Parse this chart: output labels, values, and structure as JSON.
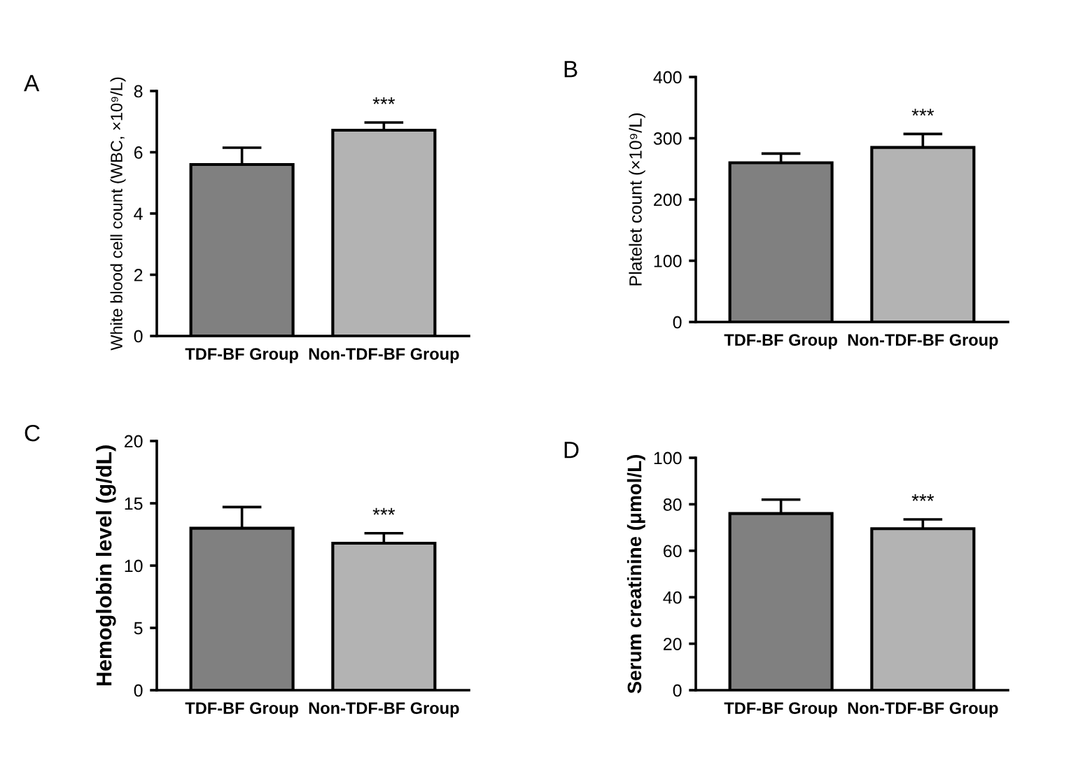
{
  "chart_data": [
    {
      "type": "bar",
      "title": "A",
      "ylabel": "White blood cell count (WBC, ×10⁹/L)",
      "categories": [
        "TDF-BF Group",
        "Non-TDF-BF Group"
      ],
      "values": [
        5.6,
        6.72
      ],
      "colors": [
        "#808080",
        "#b3b3b3"
      ],
      "errors": [
        0.55,
        0.25
      ],
      "ylim": [
        0,
        8
      ],
      "yticks": [
        0,
        2,
        4,
        6,
        8
      ],
      "grid": false,
      "annotations": [
        "***"
      ]
    },
    {
      "type": "bar",
      "title": "B",
      "ylabel": "Platelet count (×10⁹/L)",
      "categories": [
        "TDF-BF Group",
        "Non-TDF-BF Group"
      ],
      "values": [
        260,
        285
      ],
      "colors": [
        "#808080",
        "#b3b3b3"
      ],
      "errors": [
        15,
        22
      ],
      "ylim": [
        0,
        400
      ],
      "yticks": [
        0,
        100,
        200,
        300,
        400
      ],
      "grid": false,
      "annotations": [
        "***"
      ]
    },
    {
      "type": "bar",
      "title": "C",
      "ylabel": "Hemoglobin level (g/dL)",
      "categories": [
        "TDF-BF Group",
        "Non-TDF-BF Group"
      ],
      "values": [
        13.0,
        11.8
      ],
      "colors": [
        "#808080",
        "#b3b3b3"
      ],
      "errors": [
        1.7,
        0.8
      ],
      "ylim": [
        0,
        20
      ],
      "yticks": [
        0,
        5,
        10,
        15,
        20
      ],
      "grid": false,
      "annotations": [
        "***"
      ]
    },
    {
      "type": "bar",
      "title": "D",
      "ylabel": "Serum creatinine (μmol/L)",
      "categories": [
        "TDF-BF Group",
        "Non-TDF-BF Group"
      ],
      "values": [
        76,
        69.5
      ],
      "colors": [
        "#808080",
        "#b3b3b3"
      ],
      "errors": [
        6,
        4
      ],
      "ylim": [
        0,
        100
      ],
      "yticks": [
        0,
        20,
        40,
        60,
        80,
        100
      ],
      "grid": false,
      "annotations": [
        "***"
      ]
    }
  ]
}
